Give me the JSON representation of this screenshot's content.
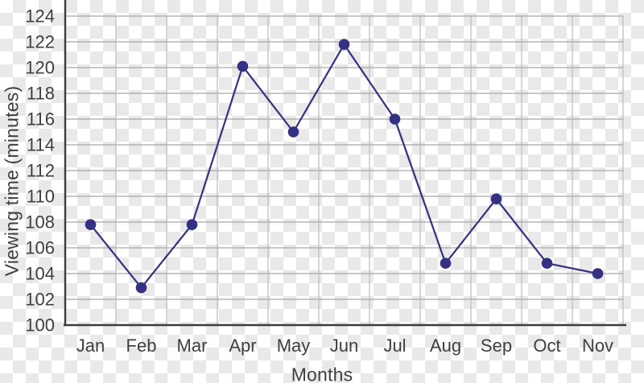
{
  "window": {
    "background": "transparency-checkerboard"
  },
  "colors": {
    "line": "#343183",
    "marker": "#343183",
    "grid_horizontal": "#a6a6a6",
    "grid_vertical": "#b6b6b6",
    "axis": "#3c3c3c",
    "text": "#3f3f3f",
    "checker_light": "#ffffff",
    "checker_dark": "#e9e9e9"
  },
  "chart_data": {
    "type": "line",
    "title": "",
    "xlabel": "Months",
    "ylabel": "Viewing time (minutes)",
    "categories": [
      "Jan",
      "Feb",
      "Mar",
      "Apr",
      "May",
      "Jun",
      "Jul",
      "Aug",
      "Sep",
      "Oct",
      "Nov"
    ],
    "series": [
      {
        "name": "viewing-time",
        "values": [
          107.8,
          102.9,
          107.8,
          120.1,
          115.0,
          121.8,
          116.0,
          104.8,
          109.8,
          104.8,
          104.0
        ]
      }
    ],
    "ylim": [
      100,
      124
    ],
    "ytick_step": 2,
    "yticks": [
      100,
      102,
      104,
      106,
      108,
      110,
      112,
      114,
      116,
      118,
      120,
      122,
      124
    ],
    "grid": "on",
    "legend": "none",
    "marker": "circle"
  }
}
